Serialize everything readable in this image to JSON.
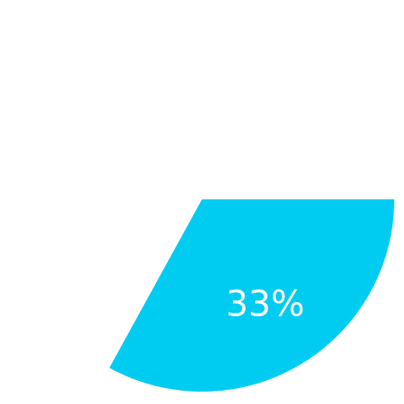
{
  "chart_data": {
    "type": "pie",
    "slices": [
      {
        "value": 33,
        "label": "33%",
        "color": "#00CCF2"
      }
    ]
  }
}
